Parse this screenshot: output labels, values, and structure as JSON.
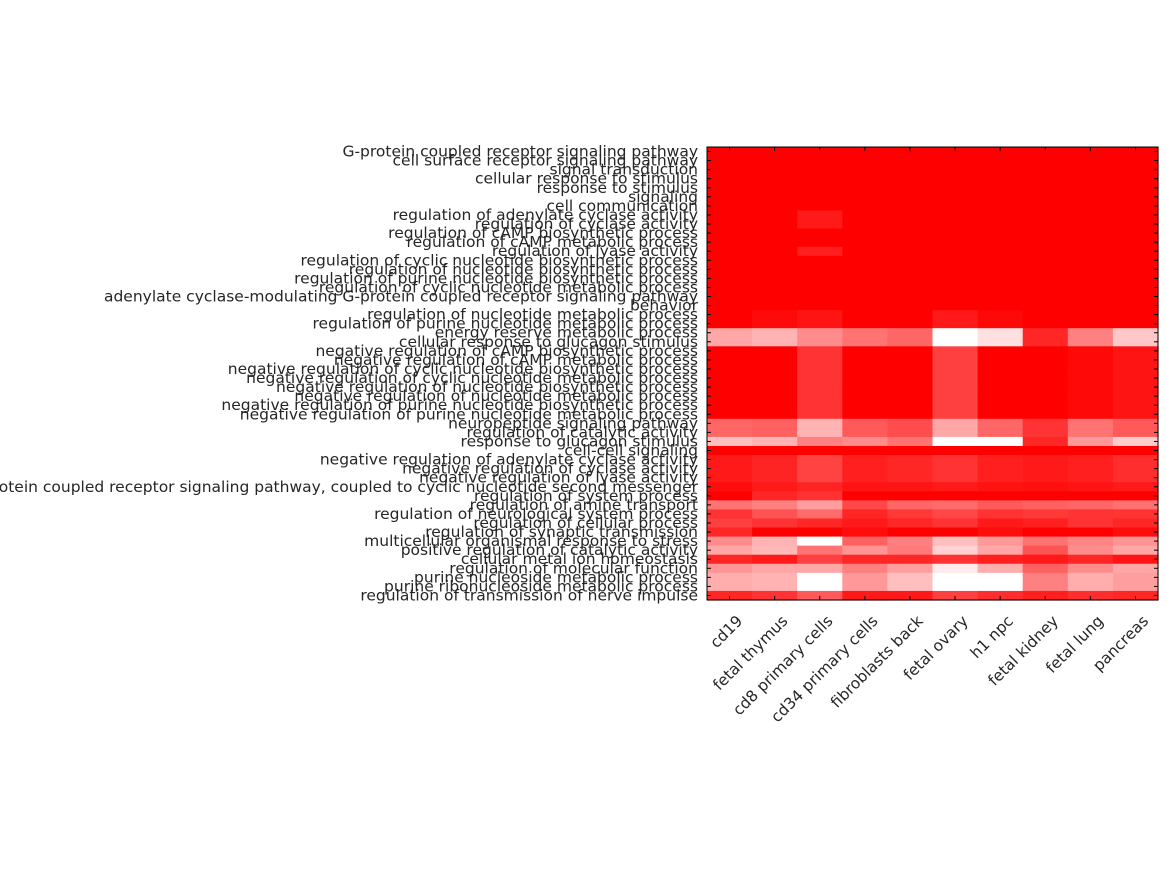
{
  "chart_data": {
    "type": "heatmap",
    "title": "",
    "xlabel": "",
    "ylabel": "",
    "grid": false,
    "legend": "none",
    "colormap": {
      "low": "#ffffff",
      "high": "#ff0000"
    },
    "value_range": [
      0,
      1
    ],
    "columns": [
      "cd19",
      "fetal thymus",
      "cd8 primary cells",
      "cd34 primary cells",
      "fibroblasts back",
      "fetal ovary",
      "h1 npc",
      "fetal kidney",
      "fetal lung",
      "pancreas"
    ],
    "rows": [
      "G-protein coupled receptor signaling pathway",
      "cell surface receptor signaling pathway",
      "signal transduction",
      "cellular response to stimulus",
      "response to stimulus",
      "signaling",
      "cell communication",
      "regulation of adenylate cyclase activity",
      "regulation of cyclase activity",
      "regulation of cAMP biosynthetic process",
      "regulation of cAMP metabolic process",
      "regulation of lyase activity",
      "regulation of cyclic nucleotide biosynthetic process",
      "regulation of nucleotide biosynthetic process",
      "regulation of purine nucleotide biosynthetic process",
      "regulation of cyclic nucleotide metabolic process",
      "adenylate cyclase-modulating G-protein coupled receptor signaling pathway",
      "behavior",
      "regulation of nucleotide metabolic process",
      "regulation of purine nucleotide metabolic process",
      "energy reserve metabolic process",
      "cellular response to glucagon stimulus",
      "negative regulation of cAMP biosynthetic process",
      "negative regulation of cAMP metabolic process",
      "negative regulation of cyclic nucleotide biosynthetic process",
      "negative regulation of cyclic nucleotide metabolic process",
      "negative regulation of nucleotide biosynthetic process",
      "negative regulation of nucleotide metabolic process",
      "negative regulation of purine nucleotide biosynthetic process",
      "negative regulation of purine nucleotide metabolic process",
      "neuropeptide signaling pathway",
      "regulation of catalytic activity",
      "response to glucagon stimulus",
      "cell-cell signaling",
      "negative regulation of adenylate cyclase activity",
      "negative regulation of cyclase activity",
      "negative regulation of lyase activity",
      "G-protein coupled receptor signaling pathway, coupled to cyclic nucleotide second messenger",
      "regulation of system process",
      "regulation of amine transport",
      "regulation of neurological system process",
      "regulation of cellular process",
      "regulation of synaptic transmission",
      "multicellular organismal response to stress",
      "positive regulation of catalytic activity",
      "cellular metal ion homeostasis",
      "regulation of molecular function",
      "purine nucleoside metabolic process",
      "purine ribonucleoside metabolic process",
      "regulation of transmission of nerve impulse"
    ],
    "values": [
      [
        1,
        1,
        1,
        1,
        1,
        1,
        1,
        1,
        1,
        1
      ],
      [
        1,
        1,
        1,
        1,
        1,
        1,
        1,
        1,
        1,
        1
      ],
      [
        1,
        1,
        1,
        1,
        1,
        1,
        1,
        1,
        1,
        1
      ],
      [
        1,
        1,
        1,
        1,
        1,
        1,
        1,
        1,
        1,
        1
      ],
      [
        1,
        1,
        1,
        1,
        1,
        1,
        1,
        1,
        1,
        1
      ],
      [
        1,
        1,
        1,
        1,
        1,
        1,
        1,
        1,
        1,
        1
      ],
      [
        1,
        1,
        1,
        1,
        1,
        1,
        1,
        1,
        1,
        1
      ],
      [
        1,
        1,
        0.9,
        1,
        1,
        1,
        1,
        1,
        1,
        1
      ],
      [
        1,
        1,
        0.9,
        1,
        1,
        1,
        1,
        1,
        1,
        1
      ],
      [
        1,
        1,
        1,
        1,
        1,
        1,
        1,
        1,
        1,
        1
      ],
      [
        1,
        1,
        1,
        1,
        1,
        1,
        1,
        1,
        1,
        1
      ],
      [
        1,
        1,
        0.88,
        1,
        1,
        1,
        1,
        1,
        1,
        1
      ],
      [
        1,
        1,
        1,
        1,
        1,
        1,
        1,
        1,
        1,
        1
      ],
      [
        1,
        1,
        1,
        1,
        1,
        1,
        1,
        1,
        1,
        1
      ],
      [
        1,
        1,
        1,
        1,
        1,
        1,
        1,
        1,
        1,
        1
      ],
      [
        1,
        1,
        1,
        1,
        1,
        1,
        1,
        1,
        1,
        1
      ],
      [
        1,
        1,
        1,
        1,
        1,
        1,
        1,
        1,
        1,
        1
      ],
      [
        1,
        1,
        1,
        1,
        1,
        1,
        1,
        1,
        1,
        1
      ],
      [
        1,
        0.96,
        0.92,
        1,
        1,
        0.9,
        0.97,
        1,
        1,
        1
      ],
      [
        1,
        0.96,
        0.92,
        1,
        1,
        0.9,
        0.97,
        1,
        1,
        1
      ],
      [
        0.35,
        0.3,
        0.45,
        0.55,
        0.6,
        0.0,
        0.12,
        0.85,
        0.5,
        0.22
      ],
      [
        0.35,
        0.3,
        0.45,
        0.55,
        0.6,
        0.0,
        0.12,
        0.85,
        0.5,
        0.22
      ],
      [
        1,
        1,
        0.8,
        1,
        1,
        0.75,
        1,
        1,
        0.97,
        0.92
      ],
      [
        1,
        1,
        0.8,
        1,
        1,
        0.75,
        1,
        1,
        0.97,
        0.92
      ],
      [
        1,
        1,
        0.8,
        1,
        1,
        0.75,
        1,
        1,
        0.97,
        0.92
      ],
      [
        1,
        1,
        0.8,
        1,
        1,
        0.75,
        1,
        1,
        0.97,
        0.92
      ],
      [
        1,
        1,
        0.8,
        1,
        1,
        0.75,
        1,
        1,
        0.97,
        0.92
      ],
      [
        1,
        1,
        0.8,
        1,
        1,
        0.75,
        1,
        1,
        0.97,
        0.92
      ],
      [
        1,
        1,
        0.8,
        1,
        1,
        0.75,
        1,
        1,
        0.97,
        0.92
      ],
      [
        1,
        1,
        0.8,
        1,
        1,
        0.75,
        1,
        1,
        0.97,
        0.92
      ],
      [
        0.6,
        0.62,
        0.3,
        0.65,
        0.7,
        0.35,
        0.6,
        0.8,
        0.55,
        0.65
      ],
      [
        0.6,
        0.62,
        0.3,
        0.65,
        0.7,
        0.35,
        0.6,
        0.8,
        0.55,
        0.65
      ],
      [
        0.25,
        0.3,
        0.5,
        0.45,
        0.55,
        0.0,
        0.0,
        0.85,
        0.4,
        0.2
      ],
      [
        1,
        1,
        1,
        1,
        1,
        1,
        1,
        1,
        1,
        1
      ],
      [
        0.9,
        0.86,
        0.74,
        0.88,
        0.85,
        0.8,
        0.88,
        0.9,
        0.88,
        0.82
      ],
      [
        0.9,
        0.86,
        0.74,
        0.88,
        0.85,
        0.8,
        0.88,
        0.9,
        0.88,
        0.82
      ],
      [
        0.9,
        0.86,
        0.74,
        0.88,
        0.85,
        0.8,
        0.88,
        0.9,
        0.88,
        0.82
      ],
      [
        0.95,
        0.9,
        0.86,
        0.92,
        0.92,
        0.9,
        0.93,
        0.94,
        0.92,
        0.9
      ],
      [
        1,
        0.85,
        0.8,
        1,
        1,
        1,
        1,
        1,
        1,
        1
      ],
      [
        0.55,
        0.5,
        0.38,
        0.72,
        0.6,
        0.58,
        0.65,
        0.62,
        0.6,
        0.56
      ],
      [
        0.8,
        0.68,
        0.58,
        0.85,
        0.78,
        0.72,
        0.8,
        0.78,
        0.8,
        0.8
      ],
      [
        0.75,
        0.8,
        0.85,
        0.9,
        0.85,
        0.8,
        0.9,
        0.88,
        0.8,
        0.85
      ],
      [
        0.85,
        1,
        1,
        0.95,
        1,
        1,
        0.95,
        1,
        1,
        0.95
      ],
      [
        0.45,
        0.3,
        0.0,
        0.62,
        0.5,
        0.25,
        0.4,
        0.55,
        0.48,
        0.42
      ],
      [
        0.35,
        0.28,
        0.55,
        0.42,
        0.52,
        0.18,
        0.35,
        0.68,
        0.45,
        0.35
      ],
      [
        0.85,
        0.9,
        0.75,
        0.85,
        0.85,
        0.8,
        0.88,
        0.9,
        0.85,
        0.92
      ],
      [
        0.42,
        0.35,
        0.35,
        0.5,
        0.38,
        0.08,
        0.32,
        0.62,
        0.45,
        0.35
      ],
      [
        0.32,
        0.3,
        0.0,
        0.4,
        0.25,
        0.0,
        0.0,
        0.5,
        0.32,
        0.38
      ],
      [
        0.32,
        0.3,
        0.0,
        0.4,
        0.25,
        0.0,
        0.0,
        0.5,
        0.32,
        0.38
      ],
      [
        0.85,
        0.8,
        0.65,
        0.9,
        0.9,
        0.75,
        0.82,
        0.88,
        0.82,
        0.85
      ]
    ]
  }
}
